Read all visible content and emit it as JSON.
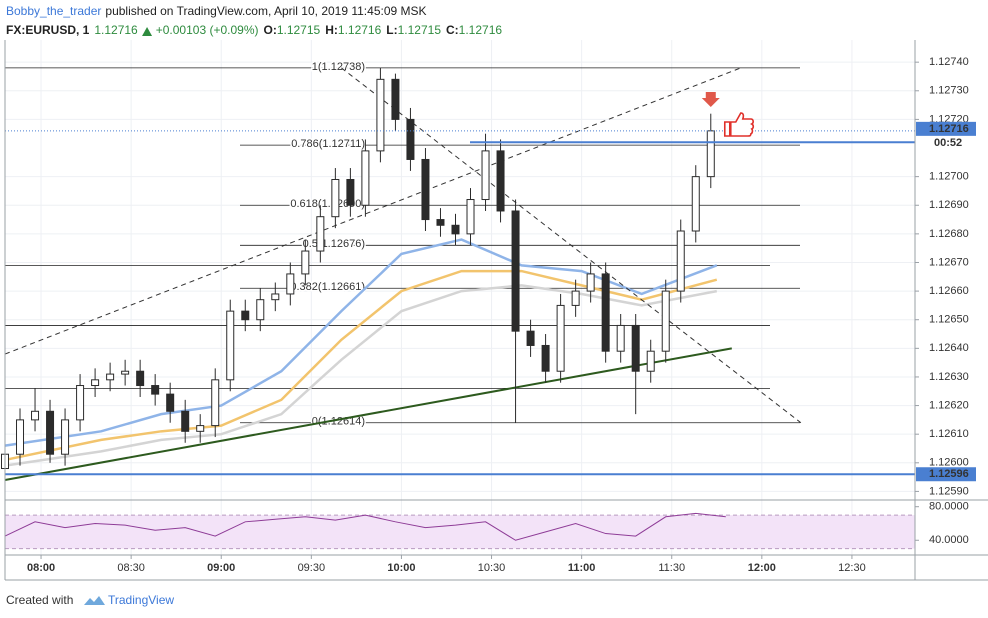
{
  "header": {
    "author": "Bobby_the_trader",
    "published": "published on TradingView.com, April 10, 2019 11:45:09 MSK",
    "symbol": "FX:EURUSD, 1",
    "price": 1.12716,
    "change": "+0.00103 (+0.09%)",
    "ohlc": [
      {
        "label": "O:",
        "value": 1.12715
      },
      {
        "label": "H:",
        "value": 1.12716
      },
      {
        "label": "L:",
        "value": 1.12715
      },
      {
        "label": "C:",
        "value": 1.12716
      }
    ]
  },
  "footer": {
    "text": "Created with",
    "brand": "TradingView"
  },
  "chart_data": {
    "type": "candlestick",
    "xlim": [
      468,
      771
    ],
    "xticks": [
      {
        "value": 480,
        "label": "08:00"
      },
      {
        "value": 510,
        "label": "08:30"
      },
      {
        "value": 540,
        "label": "09:00"
      },
      {
        "value": 570,
        "label": "09:30"
      },
      {
        "value": 600,
        "label": "10:00"
      },
      {
        "value": 630,
        "label": "10:30"
      },
      {
        "value": 660,
        "label": "11:00"
      },
      {
        "value": 690,
        "label": "11:30"
      },
      {
        "value": 720,
        "label": "12:00"
      },
      {
        "value": 750,
        "label": "12:30"
      }
    ],
    "ylim": [
      1.12587,
      1.12746
    ],
    "yticks": [
      {
        "value": 1.1259,
        "label": "1.12590"
      },
      {
        "value": 1.126,
        "label": "1.12600"
      },
      {
        "value": 1.1261,
        "label": "1.12610"
      },
      {
        "value": 1.1262,
        "label": "1.12620"
      },
      {
        "value": 1.1263,
        "label": "1.12630"
      },
      {
        "value": 1.1264,
        "label": "1.12640"
      },
      {
        "value": 1.1265,
        "label": "1.12650"
      },
      {
        "value": 1.1266,
        "label": "1.12660"
      },
      {
        "value": 1.1267,
        "label": "1.12670"
      },
      {
        "value": 1.1268,
        "label": "1.12680"
      },
      {
        "value": 1.1269,
        "label": "1.12690"
      },
      {
        "value": 1.127,
        "label": "1.12700"
      },
      {
        "value": 1.1272,
        "label": "1.12720"
      },
      {
        "value": 1.1273,
        "label": "1.12730"
      },
      {
        "value": 1.1274,
        "label": "1.12740"
      }
    ],
    "grid": true,
    "up_color": "#ffffff",
    "down_color": "#2b2b2b",
    "outline_color": "#2b2b2b",
    "candles": {
      "x": [
        468,
        473,
        478,
        483,
        488,
        493,
        498,
        503,
        508,
        513,
        518,
        523,
        528,
        533,
        538,
        543,
        548,
        553,
        558,
        563,
        568,
        573,
        578,
        583,
        588,
        593,
        598,
        603,
        608,
        613,
        618,
        623,
        628,
        633,
        638,
        643,
        648,
        653,
        658,
        663,
        668,
        673,
        678,
        683,
        688,
        693,
        698,
        703
      ],
      "open": [
        1.12598,
        1.12603,
        1.12615,
        1.12618,
        1.12603,
        1.12615,
        1.12627,
        1.12629,
        1.12631,
        1.12632,
        1.12627,
        1.12624,
        1.12618,
        1.12611,
        1.12613,
        1.12629,
        1.12653,
        1.1265,
        1.12657,
        1.12659,
        1.12666,
        1.12674,
        1.12686,
        1.12699,
        1.1269,
        1.12709,
        1.12734,
        1.1272,
        1.12706,
        1.12685,
        1.12683,
        1.1268,
        1.12692,
        1.12709,
        1.12688,
        1.12646,
        1.12641,
        1.12632,
        1.12655,
        1.1266,
        1.12666,
        1.12639,
        1.12648,
        1.12632,
        1.12639,
        1.1266,
        1.12681,
        1.127
      ],
      "high": [
        1.12607,
        1.12619,
        1.12626,
        1.12622,
        1.12619,
        1.12631,
        1.12633,
        1.12635,
        1.12636,
        1.12636,
        1.12631,
        1.12628,
        1.12622,
        1.12617,
        1.12633,
        1.12657,
        1.12657,
        1.12661,
        1.12663,
        1.1267,
        1.12678,
        1.1269,
        1.12703,
        1.12703,
        1.12713,
        1.12738,
        1.12736,
        1.12724,
        1.1271,
        1.12689,
        1.12687,
        1.12696,
        1.12715,
        1.12713,
        1.12692,
        1.1265,
        1.12645,
        1.12659,
        1.12664,
        1.1267,
        1.1267,
        1.12652,
        1.12652,
        1.12643,
        1.12664,
        1.12685,
        1.12704,
        1.12722
      ],
      "low": [
        1.12594,
        1.12599,
        1.12611,
        1.126,
        1.12599,
        1.12611,
        1.12623,
        1.12625,
        1.12627,
        1.12623,
        1.1262,
        1.12614,
        1.12607,
        1.12607,
        1.12609,
        1.12625,
        1.12646,
        1.12646,
        1.12653,
        1.12655,
        1.12662,
        1.1267,
        1.12682,
        1.12686,
        1.12686,
        1.12705,
        1.12716,
        1.12702,
        1.12681,
        1.12679,
        1.12676,
        1.12676,
        1.12688,
        1.12684,
        1.12614,
        1.12637,
        1.12628,
        1.12628,
        1.12651,
        1.12656,
        1.12635,
        1.12635,
        1.12617,
        1.12628,
        1.12635,
        1.12656,
        1.12677,
        1.12696
      ],
      "close": [
        1.12603,
        1.12615,
        1.12618,
        1.12603,
        1.12615,
        1.12627,
        1.12629,
        1.12631,
        1.12632,
        1.12627,
        1.12624,
        1.12618,
        1.12611,
        1.12613,
        1.12629,
        1.12653,
        1.1265,
        1.12657,
        1.12659,
        1.12666,
        1.12674,
        1.12686,
        1.12699,
        1.1269,
        1.12709,
        1.12734,
        1.1272,
        1.12706,
        1.12685,
        1.12683,
        1.1268,
        1.12692,
        1.12709,
        1.12688,
        1.12646,
        1.12641,
        1.12632,
        1.12655,
        1.1266,
        1.12666,
        1.12639,
        1.12648,
        1.12632,
        1.12639,
        1.1266,
        1.12681,
        1.127,
        1.12716
      ]
    },
    "moving_averages": [
      {
        "color": "#8fb4e8",
        "x": [
          468,
          500,
          520,
          540,
          560,
          580,
          600,
          620,
          640,
          660,
          680,
          705
        ],
        "values": [
          1.12606,
          1.12611,
          1.12617,
          1.1262,
          1.12632,
          1.12653,
          1.12673,
          1.12678,
          1.12669,
          1.12667,
          1.12659,
          1.12669
        ]
      },
      {
        "color": "#f2c46d",
        "x": [
          468,
          500,
          520,
          540,
          560,
          580,
          600,
          620,
          640,
          660,
          680,
          705
        ],
        "values": [
          1.12601,
          1.12608,
          1.12611,
          1.12613,
          1.12622,
          1.12643,
          1.1266,
          1.12667,
          1.12667,
          1.12662,
          1.12657,
          1.12664
        ]
      },
      {
        "color": "#d4d4d4",
        "x": [
          468,
          500,
          520,
          540,
          560,
          580,
          600,
          620,
          640,
          660,
          680,
          705
        ],
        "values": [
          1.12599,
          1.12604,
          1.12608,
          1.1261,
          1.12617,
          1.12636,
          1.12653,
          1.1266,
          1.12662,
          1.12659,
          1.12655,
          1.1266
        ]
      }
    ],
    "fib_levels": [
      {
        "value": 1.12738,
        "label": "1(1.12738)"
      },
      {
        "value": 1.12711,
        "label": "0.786(1.12711)"
      },
      {
        "value": 1.1269,
        "label": "0.618(1.12690)"
      },
      {
        "value": 1.12676,
        "label": "0.5(1.12676)"
      },
      {
        "value": 1.12661,
        "label": "0.382(1.12661)"
      },
      {
        "value": 1.12614,
        "label": "0(1.12614)"
      }
    ],
    "lines": [
      1.12669,
      1.12648,
      1.12626
    ],
    "levels": [
      1.12712,
      1.12596
    ],
    "level_color": "#4a7fd1",
    "last_price": 1.12716,
    "countdown": "00:52",
    "trendlines": [
      {
        "color": "#333333",
        "dashed": true,
        "x": [
          468,
          713
        ],
        "y": [
          1.12638,
          1.12738
        ]
      },
      {
        "color": "#333333",
        "dashed": true,
        "x": [
          580,
          733
        ],
        "y": [
          1.12738,
          1.12614
        ]
      },
      {
        "color": "#2d5a1e",
        "dashed": false,
        "x": [
          468,
          710
        ],
        "y": [
          1.12594,
          1.1264
        ]
      }
    ],
    "rsi": {
      "color": "#8e3c97",
      "ylim": [
        26,
        88
      ],
      "yticks": [
        {
          "value": 80,
          "label": "80.0000"
        },
        {
          "value": 40,
          "label": "40.0000"
        }
      ],
      "band": [
        30,
        70
      ],
      "x": [
        468,
        478,
        488,
        498,
        508,
        518,
        528,
        538,
        548,
        558,
        568,
        578,
        588,
        598,
        608,
        618,
        628,
        638,
        648,
        658,
        668,
        678,
        688,
        698,
        708
      ],
      "values": [
        45,
        62,
        55,
        60,
        58,
        52,
        55,
        45,
        62,
        65,
        68,
        64,
        70,
        62,
        55,
        58,
        62,
        40,
        50,
        60,
        48,
        45,
        68,
        72,
        68
      ]
    }
  }
}
